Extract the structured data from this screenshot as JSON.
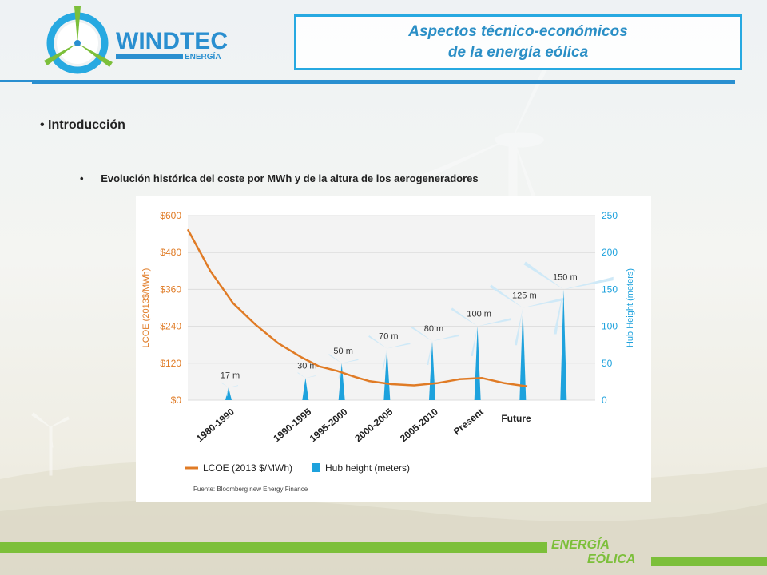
{
  "header": {
    "logo_text": "WINDTEC",
    "logo_sub": "ENERGÍA",
    "title_line1": "Aspectos técnico-económicos",
    "title_line2": "de la energía eólica"
  },
  "content": {
    "bullet1": "• Introducción",
    "bullet2_marker": "•",
    "bullet2": "Evolución histórica del coste por MWh y de la altura de los aerogeneradores"
  },
  "chart_data": {
    "type": "line",
    "categories": [
      "1980-1990",
      "1990-1995",
      "1995-2000",
      "2000-2005",
      "2005-2010",
      "Present",
      "Future"
    ],
    "y_left": {
      "label": "LCOE (2013$/MWh)",
      "range": [
        0,
        600
      ],
      "ticks": [
        "$0",
        "$120",
        "$240",
        "$360",
        "$480",
        "$600"
      ]
    },
    "y_right": {
      "label": "Hub Height (meters)",
      "range": [
        0,
        250
      ],
      "ticks": [
        "0",
        "50",
        "100",
        "150",
        "200",
        "250"
      ]
    },
    "series": [
      {
        "name": "LCOE (2013 $/MWh)",
        "color": "#e07b25",
        "axis": "left",
        "points": [
          {
            "x": 0.0,
            "y": 555
          },
          {
            "x": 0.5,
            "y": 420
          },
          {
            "x": 1.0,
            "y": 315
          },
          {
            "x": 1.5,
            "y": 245
          },
          {
            "x": 2.0,
            "y": 185
          },
          {
            "x": 2.5,
            "y": 140
          },
          {
            "x": 2.9,
            "y": 110
          },
          {
            "x": 3.3,
            "y": 95
          },
          {
            "x": 3.7,
            "y": 75
          },
          {
            "x": 4.0,
            "y": 62
          },
          {
            "x": 4.5,
            "y": 52
          },
          {
            "x": 5.0,
            "y": 48
          },
          {
            "x": 5.5,
            "y": 55
          },
          {
            "x": 6.0,
            "y": 68
          },
          {
            "x": 6.5,
            "y": 72
          },
          {
            "x": 7.0,
            "y": 55
          },
          {
            "x": 7.5,
            "y": 45
          }
        ]
      },
      {
        "name": "Hub height (meters)",
        "color": "#1ea2dd",
        "axis": "right",
        "points": [
          {
            "x": 0.9,
            "y": 17,
            "label": "17 m"
          },
          {
            "x": 2.6,
            "y": 30,
            "label": "30 m"
          },
          {
            "x": 3.4,
            "y": 50,
            "label": "50 m"
          },
          {
            "x": 4.4,
            "y": 70,
            "label": "70 m"
          },
          {
            "x": 5.4,
            "y": 80,
            "label": "80 m"
          },
          {
            "x": 6.4,
            "y": 100,
            "label": "100 m"
          },
          {
            "x": 7.4,
            "y": 125,
            "label": "125 m"
          },
          {
            "x": 8.3,
            "y": 150,
            "label": "150 m"
          }
        ]
      }
    ],
    "legend": [
      {
        "label": "LCOE (2013 $/MWh)",
        "swatch": "line",
        "color": "#e07b25"
      },
      {
        "label": "Hub height (meters)",
        "swatch": "square",
        "color": "#1ea2dd"
      }
    ],
    "legend_position": "bottom-left",
    "grid": true,
    "source": "Fuente: Bloomberg new Energy Finance"
  },
  "footer": {
    "word1": "ENERGÍA",
    "word2": "EÓLICA"
  },
  "colors": {
    "accent_blue": "#27a9e1",
    "header_blue": "#2a8fd0",
    "green": "#7cbf3a",
    "orange": "#e07b25"
  }
}
